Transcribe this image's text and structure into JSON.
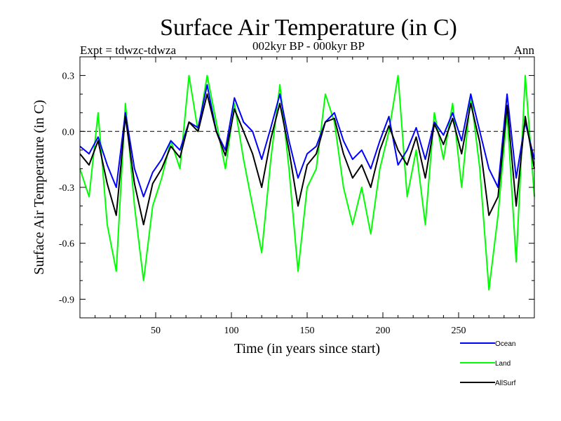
{
  "chart_data": {
    "type": "line",
    "title": "Surface Air Temperature (in C)",
    "subtitle": "002kyr BP - 000kyr BP",
    "experiment_label": "Expt = tdwzc-tdwza",
    "season_label": "Ann",
    "xlabel": "Time (in years since start)",
    "ylabel": "Surface Air Temperature (in C)",
    "xlim": [
      0,
      300
    ],
    "ylim": [
      -1.0,
      0.4
    ],
    "xticks": [
      50,
      100,
      150,
      200,
      250
    ],
    "xtick_labels": [
      "50",
      "100",
      "150",
      "200",
      "250"
    ],
    "yticks": [
      0.3,
      0.0,
      -0.3,
      -0.6,
      -0.9
    ],
    "ytick_labels": [
      "0.3",
      "0.0",
      "-0.3",
      "-0.6",
      "-0.9"
    ],
    "reference_line": 0.0,
    "legend_position": "bottom-right",
    "series": [
      {
        "name": "Ocean",
        "color": "#0000ff",
        "x": [
          0,
          6,
          12,
          18,
          24,
          30,
          36,
          42,
          48,
          54,
          60,
          66,
          72,
          78,
          84,
          90,
          96,
          102,
          108,
          114,
          120,
          126,
          132,
          138,
          144,
          150,
          156,
          162,
          168,
          174,
          180,
          186,
          192,
          198,
          204,
          210,
          216,
          222,
          228,
          234,
          240,
          246,
          252,
          258,
          264,
          270,
          276,
          282,
          288,
          294,
          300
        ],
        "values": [
          -0.08,
          -0.12,
          -0.03,
          -0.18,
          -0.3,
          0.1,
          -0.2,
          -0.35,
          -0.22,
          -0.15,
          -0.05,
          -0.1,
          0.05,
          0.02,
          0.25,
          0.0,
          -0.1,
          0.18,
          0.05,
          0.0,
          -0.15,
          0.02,
          0.2,
          -0.05,
          -0.25,
          -0.12,
          -0.08,
          0.05,
          0.1,
          -0.05,
          -0.15,
          -0.1,
          -0.2,
          -0.05,
          0.08,
          -0.18,
          -0.1,
          0.02,
          -0.15,
          0.05,
          -0.02,
          0.1,
          -0.05,
          0.2,
          0.0,
          -0.2,
          -0.3,
          0.2,
          -0.25,
          0.05,
          -0.15
        ]
      },
      {
        "name": "Land",
        "color": "#00ff00",
        "x": [
          0,
          6,
          12,
          18,
          24,
          30,
          36,
          42,
          48,
          54,
          60,
          66,
          72,
          78,
          84,
          90,
          96,
          102,
          108,
          114,
          120,
          126,
          132,
          138,
          144,
          150,
          156,
          162,
          168,
          174,
          180,
          186,
          192,
          198,
          204,
          210,
          216,
          222,
          228,
          234,
          240,
          246,
          252,
          258,
          264,
          270,
          276,
          282,
          288,
          294,
          300
        ],
        "values": [
          -0.2,
          -0.35,
          0.1,
          -0.5,
          -0.75,
          0.15,
          -0.4,
          -0.8,
          -0.4,
          -0.25,
          -0.05,
          -0.2,
          0.3,
          0.0,
          0.3,
          0.05,
          -0.2,
          0.15,
          -0.15,
          -0.4,
          -0.65,
          -0.15,
          0.25,
          -0.2,
          -0.75,
          -0.3,
          -0.2,
          0.2,
          0.05,
          -0.3,
          -0.5,
          -0.3,
          -0.55,
          -0.2,
          0.0,
          0.3,
          -0.35,
          -0.1,
          -0.5,
          0.1,
          -0.15,
          0.15,
          -0.3,
          0.2,
          -0.2,
          -0.85,
          -0.45,
          0.1,
          -0.7,
          0.3,
          -0.35
        ]
      },
      {
        "name": "AllSurf",
        "color": "#000000",
        "x": [
          0,
          6,
          12,
          18,
          24,
          30,
          36,
          42,
          48,
          54,
          60,
          66,
          72,
          78,
          84,
          90,
          96,
          102,
          108,
          114,
          120,
          126,
          132,
          138,
          144,
          150,
          156,
          162,
          168,
          174,
          180,
          186,
          192,
          198,
          204,
          210,
          216,
          222,
          228,
          234,
          240,
          246,
          252,
          258,
          264,
          270,
          276,
          282,
          288,
          294,
          300
        ],
        "values": [
          -0.12,
          -0.18,
          -0.05,
          -0.28,
          -0.45,
          0.08,
          -0.28,
          -0.5,
          -0.28,
          -0.2,
          -0.08,
          -0.14,
          0.05,
          0.0,
          0.2,
          0.0,
          -0.13,
          0.12,
          0.0,
          -0.12,
          -0.3,
          -0.04,
          0.15,
          -0.1,
          -0.4,
          -0.18,
          -0.12,
          0.05,
          0.07,
          -0.12,
          -0.25,
          -0.18,
          -0.3,
          -0.1,
          0.03,
          -0.1,
          -0.18,
          -0.03,
          -0.25,
          0.04,
          -0.07,
          0.07,
          -0.12,
          0.15,
          -0.06,
          -0.45,
          -0.35,
          0.14,
          -0.4,
          0.08,
          -0.2
        ]
      }
    ]
  }
}
